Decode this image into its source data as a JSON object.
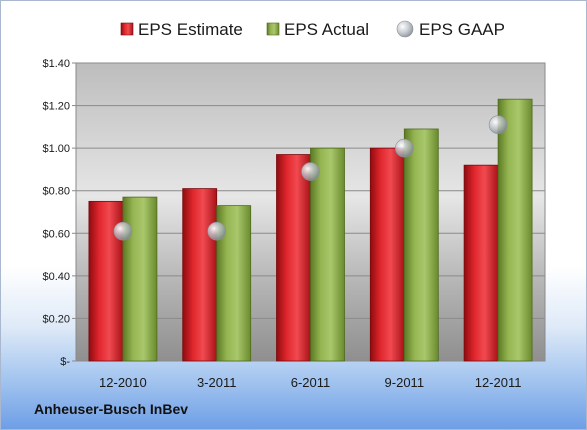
{
  "chart_data": {
    "type": "bar",
    "title": "",
    "xlabel": "",
    "ylabel": "",
    "categories": [
      "12-2010",
      "3-2011",
      "6-2011",
      "9-2011",
      "12-2011"
    ],
    "series": [
      {
        "name": "EPS Estimate",
        "kind": "bar",
        "color": "#d8222a",
        "values": [
          0.75,
          0.81,
          0.97,
          1.0,
          0.92
        ]
      },
      {
        "name": "EPS Actual",
        "kind": "bar",
        "color": "#8fb04a",
        "values": [
          0.77,
          0.73,
          1.0,
          1.09,
          1.23
        ]
      },
      {
        "name": "EPS GAAP",
        "kind": "scatter",
        "color": "#b8bec6",
        "values": [
          0.61,
          0.61,
          0.89,
          1.0,
          1.11
        ]
      }
    ],
    "ylim": [
      0,
      1.4
    ],
    "yticks": [
      0,
      0.2,
      0.4,
      0.6,
      0.8,
      1.0,
      1.2,
      1.4
    ],
    "ytick_labels": [
      "$-",
      "$0.20",
      "$0.40",
      "$0.60",
      "$0.80",
      "$1.00",
      "$1.20",
      "$1.40"
    ],
    "grid": true,
    "legend_position": "top"
  },
  "footer": {
    "company": "Anheuser-Busch InBev"
  }
}
